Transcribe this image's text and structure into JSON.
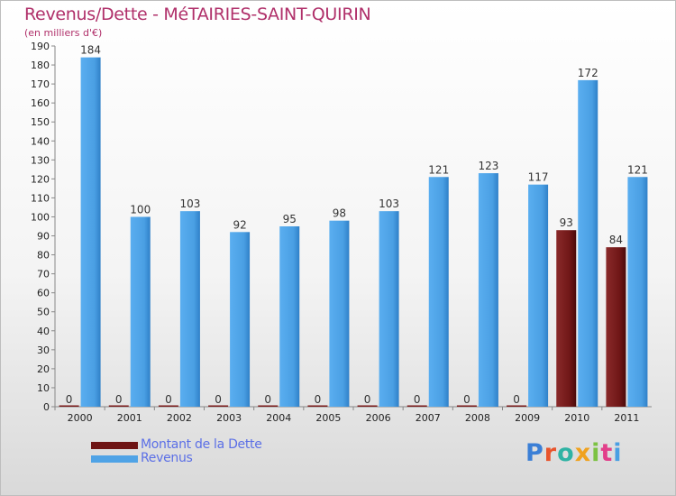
{
  "title": "Revenus/Dette - MéTAIRIES-SAINT-QUIRIN",
  "subtitle": "(en milliers d'€)",
  "logo": "Proxiti",
  "chart_data": {
    "type": "bar",
    "title": "Revenus/Dette - MéTAIRIES-SAINT-QUIRIN",
    "subtitle": "(en milliers d'€)",
    "categories": [
      "2000",
      "2001",
      "2002",
      "2003",
      "2004",
      "2005",
      "2006",
      "2007",
      "2008",
      "2009",
      "2010",
      "2011"
    ],
    "series": [
      {
        "name": "Montant de la Dette",
        "color": "#7a1a1a",
        "values": [
          0,
          0,
          0,
          0,
          0,
          0,
          0,
          0,
          0,
          0,
          93,
          84
        ]
      },
      {
        "name": "Revenus",
        "color": "#4fa3e6",
        "values": [
          184,
          100,
          103,
          92,
          95,
          98,
          103,
          121,
          123,
          117,
          172,
          121
        ]
      }
    ],
    "ylim": [
      0,
      190
    ],
    "yticks": [
      0,
      10,
      20,
      30,
      40,
      50,
      60,
      70,
      80,
      90,
      100,
      110,
      120,
      130,
      140,
      150,
      160,
      170,
      180,
      190
    ],
    "grid": false,
    "legend_position": "bottom-left"
  }
}
